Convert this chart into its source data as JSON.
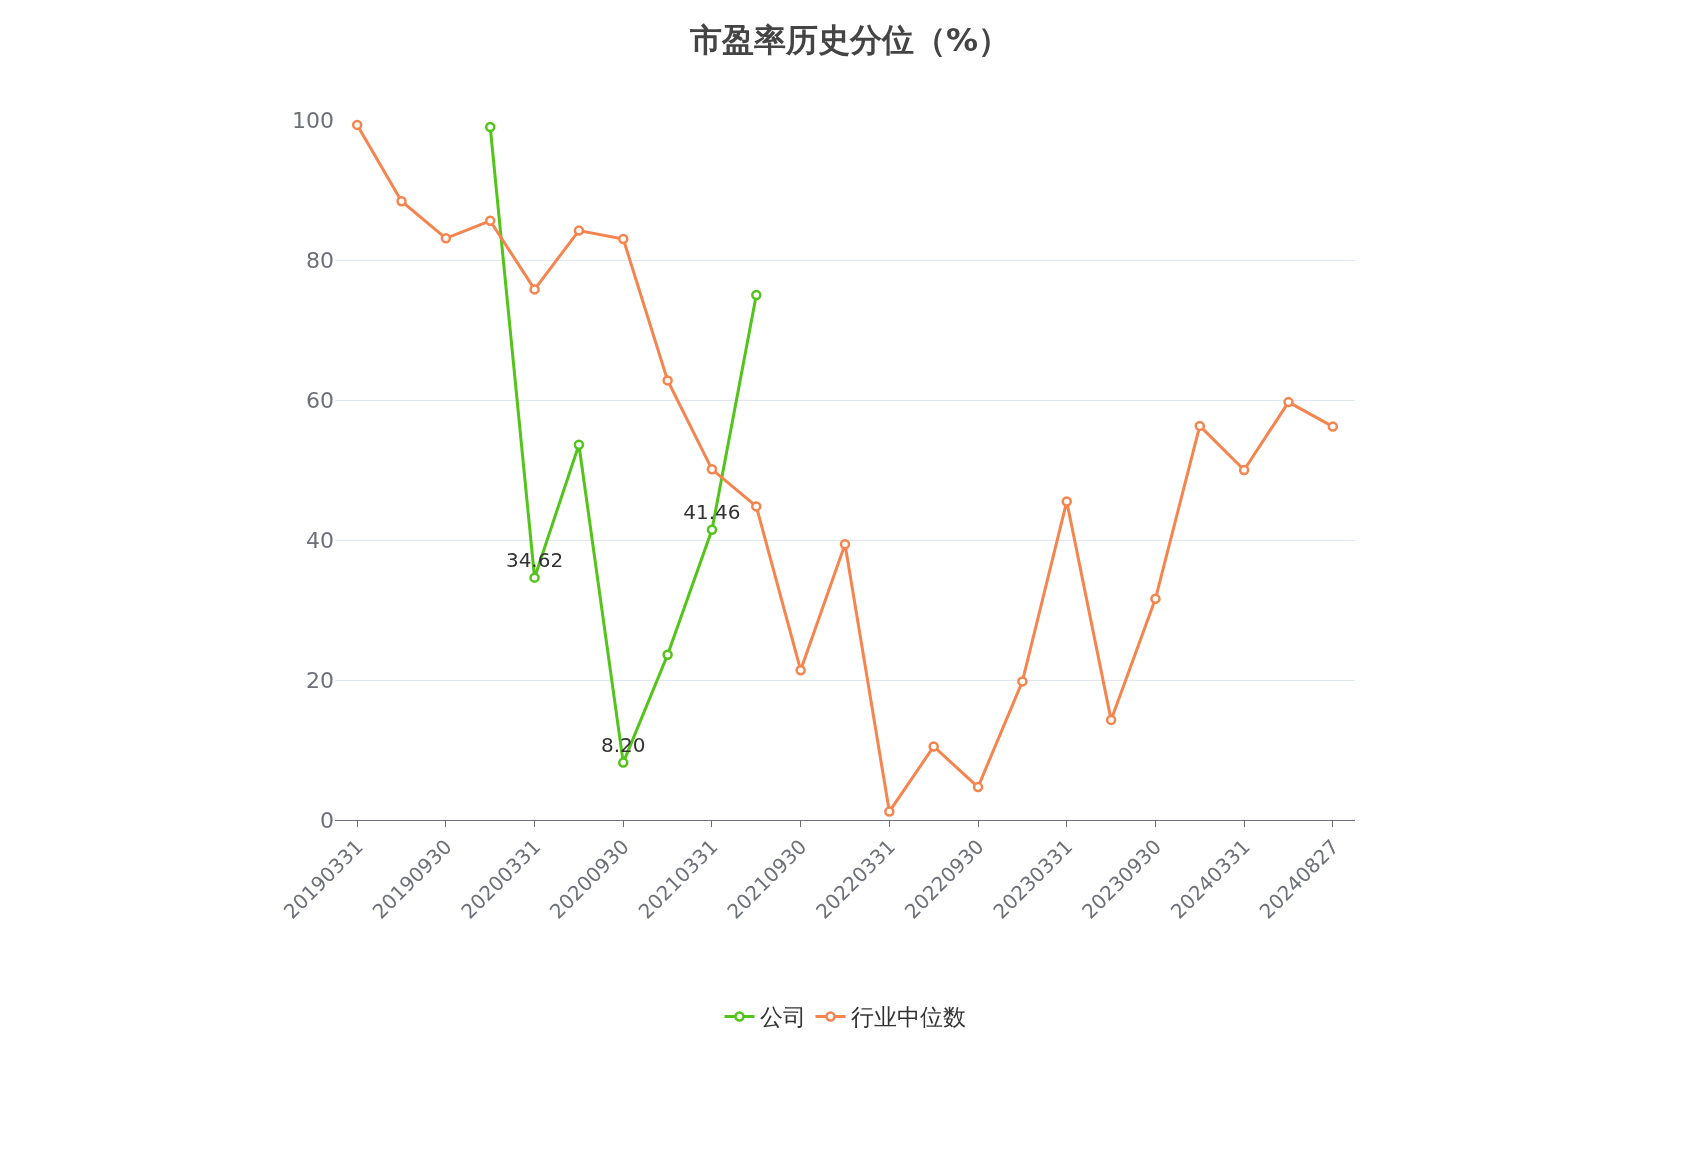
{
  "chart_data": {
    "type": "line",
    "title": "市盈率历史分位（%）",
    "categories": [
      "20190331",
      null,
      "20190930",
      null,
      "20200331",
      null,
      "20200930",
      null,
      "20210331",
      null,
      "20210930",
      null,
      "20220331",
      null,
      "20220930",
      null,
      "20230331",
      null,
      "20230930",
      null,
      "20240331",
      null,
      "20240827"
    ],
    "series": [
      {
        "name": "公司",
        "color": "#52c41a",
        "values": [
          null,
          null,
          null,
          99.0,
          34.62,
          53.6,
          8.2,
          23.6,
          41.46,
          75.0,
          null,
          null,
          null,
          null,
          null,
          null,
          null,
          null,
          null,
          null,
          null,
          null,
          null
        ],
        "value_labels": [
          null,
          null,
          null,
          null,
          "34.62",
          null,
          "8.20",
          null,
          "41.46",
          null,
          null,
          null,
          null,
          null,
          null,
          null,
          null,
          null,
          null,
          null,
          null,
          null,
          null
        ]
      },
      {
        "name": "行业中位数",
        "color": "#f5844e",
        "values": [
          99.3,
          88.4,
          83.1,
          85.6,
          75.8,
          84.2,
          83.0,
          62.8,
          50.1,
          44.8,
          21.4,
          39.4,
          1.2,
          10.5,
          4.7,
          19.8,
          45.5,
          14.3,
          31.6,
          56.3,
          50.0,
          59.7,
          56.2
        ]
      }
    ],
    "ylim": [
      0,
      100
    ],
    "yticks": [
      0,
      20,
      40,
      60,
      80,
      100
    ],
    "grid": "y",
    "legend": "bottom",
    "marker": "circle",
    "line_style": "solid"
  }
}
